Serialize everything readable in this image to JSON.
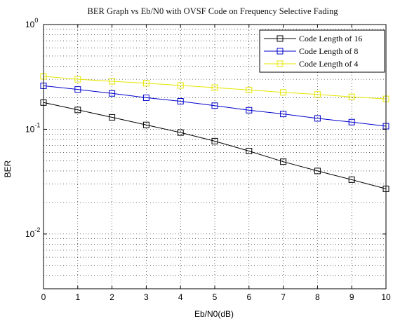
{
  "chart_data": {
    "type": "line",
    "title": "BER Graph vs Eb/N0 with OVSF Code on Frequency Selective Fading",
    "xlabel": "Eb/N0(dB)",
    "ylabel": "BER",
    "xlim": [
      0,
      10
    ],
    "ylim": [
      0.003,
      1
    ],
    "yscale": "log",
    "grid": true,
    "legend_position": "top-right",
    "x_ticks": [
      "0",
      "1",
      "2",
      "3",
      "4",
      "5",
      "6",
      "7",
      "8",
      "9",
      "10"
    ],
    "y_ticks": [
      {
        "base": "10",
        "exp": "0",
        "value": 1
      },
      {
        "base": "10",
        "exp": "-1",
        "value": 0.1
      },
      {
        "base": "10",
        "exp": "-2",
        "value": 0.01
      }
    ],
    "x": [
      0,
      1,
      2,
      3,
      4,
      5,
      6,
      7,
      8,
      9,
      10
    ],
    "series": [
      {
        "name": "Code Length of 16",
        "color": "#000000",
        "marker": "square",
        "values": [
          0.18,
          0.153,
          0.13,
          0.11,
          0.093,
          0.077,
          0.062,
          0.049,
          0.04,
          0.033,
          0.027
        ]
      },
      {
        "name": "Code Length of 8",
        "color": "#0000cc",
        "marker": "square",
        "values": [
          0.26,
          0.24,
          0.22,
          0.2,
          0.185,
          0.168,
          0.152,
          0.14,
          0.127,
          0.117,
          0.107
        ]
      },
      {
        "name": "Code Length of 4",
        "color": "#ffff00",
        "marker": "square",
        "values": [
          0.32,
          0.3,
          0.287,
          0.275,
          0.262,
          0.25,
          0.237,
          0.225,
          0.215,
          0.204,
          0.195
        ]
      }
    ]
  }
}
